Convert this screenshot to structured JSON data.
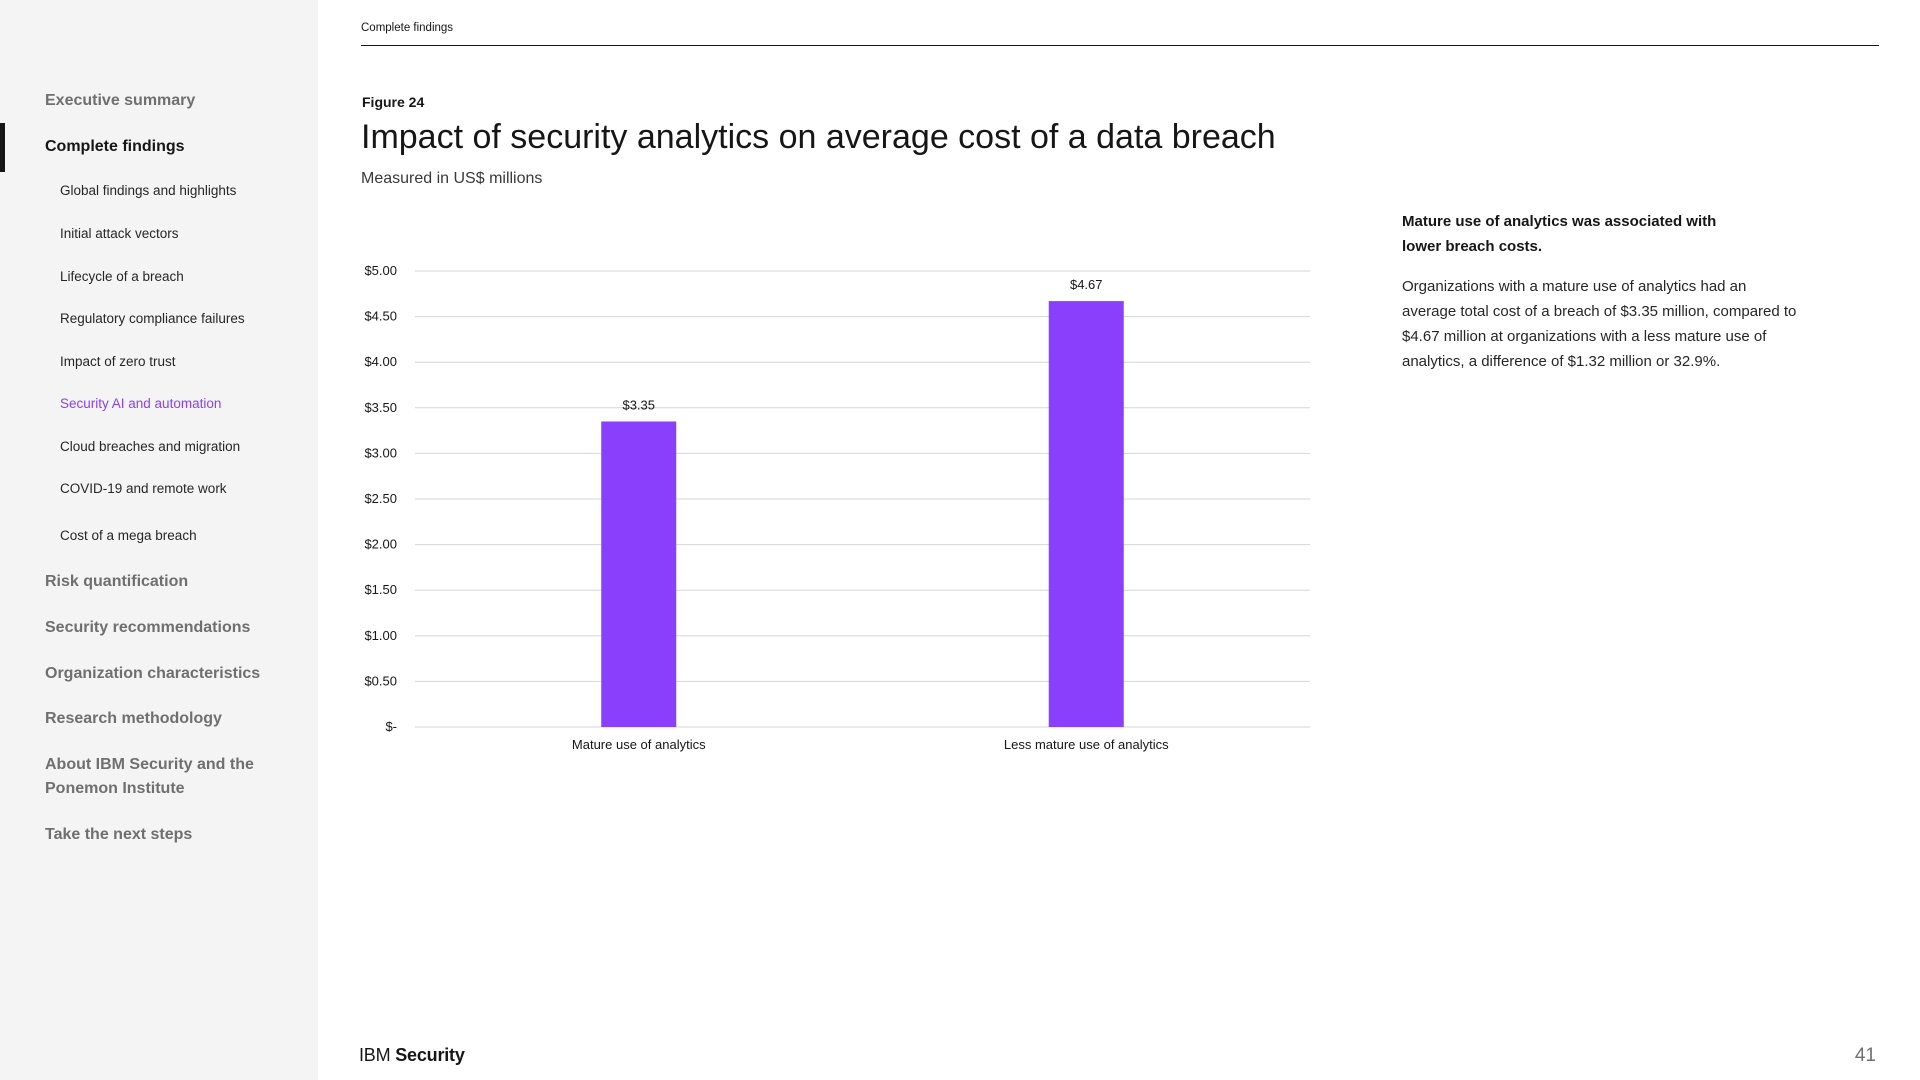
{
  "sidebar": {
    "main": [
      {
        "label": "Executive summary"
      },
      {
        "label": "Complete findings"
      },
      {
        "label": "Risk quantification"
      },
      {
        "label": "Security recommendations"
      },
      {
        "label": "Organization characteristics"
      },
      {
        "label": "Research methodology"
      },
      {
        "label": "About IBM Security and the Ponemon Institute"
      },
      {
        "label": "Take the next steps"
      }
    ],
    "sub": [
      {
        "label": "Global findings and highlights"
      },
      {
        "label": "Initial attack vectors"
      },
      {
        "label": "Lifecycle of a breach"
      },
      {
        "label": "Regulatory compliance failures"
      },
      {
        "label": "Impact of zero trust"
      },
      {
        "label": "Security AI and automation"
      },
      {
        "label": "Cloud breaches and migration"
      },
      {
        "label": "COVID-19 and remote work"
      },
      {
        "label": "Cost of a mega breach"
      }
    ]
  },
  "header": {
    "section": "Complete findings"
  },
  "figure": {
    "label": "Figure 24",
    "title": "Impact of security analytics on average cost of a data breach",
    "subtitle": "Measured in US$ millions"
  },
  "chart_data": {
    "type": "bar",
    "title": "Impact of security analytics on average cost of a data breach",
    "subtitle": "Measured in US$ millions",
    "categories": [
      "Mature use of analytics",
      "Less mature use of analytics"
    ],
    "values": [
      3.35,
      4.67
    ],
    "value_labels": [
      "$3.35",
      "$4.67"
    ],
    "ylim": [
      0,
      5
    ],
    "yticks": [
      0,
      0.5,
      1,
      1.5,
      2,
      2.5,
      3,
      3.5,
      4,
      4.5,
      5
    ],
    "ytick_labels": [
      "$-",
      "$0.50",
      "$1.00",
      "$1.50",
      "$2.00",
      "$2.50",
      "$3.00",
      "$3.50",
      "$4.00",
      "$4.50",
      "$5.00"
    ],
    "bar_color": "#8a3ffc",
    "grid": true,
    "xlabel": "",
    "ylabel": ""
  },
  "callout": {
    "heading": "Mature use of analytics was associated with lower breach costs.",
    "body": "Organizations with a mature use of analytics had an average total cost of a breach of $3.35 million, compared to $4.67 million at organizations with a less mature use of analytics, a difference of $1.32 million or 32.9%."
  },
  "footer": {
    "brand_ibm": "IBM",
    "brand_security": "Security",
    "page_number": "41"
  },
  "colors": {
    "accent": "#8a3ffc",
    "sidebar_bg": "#f4f4f4"
  }
}
